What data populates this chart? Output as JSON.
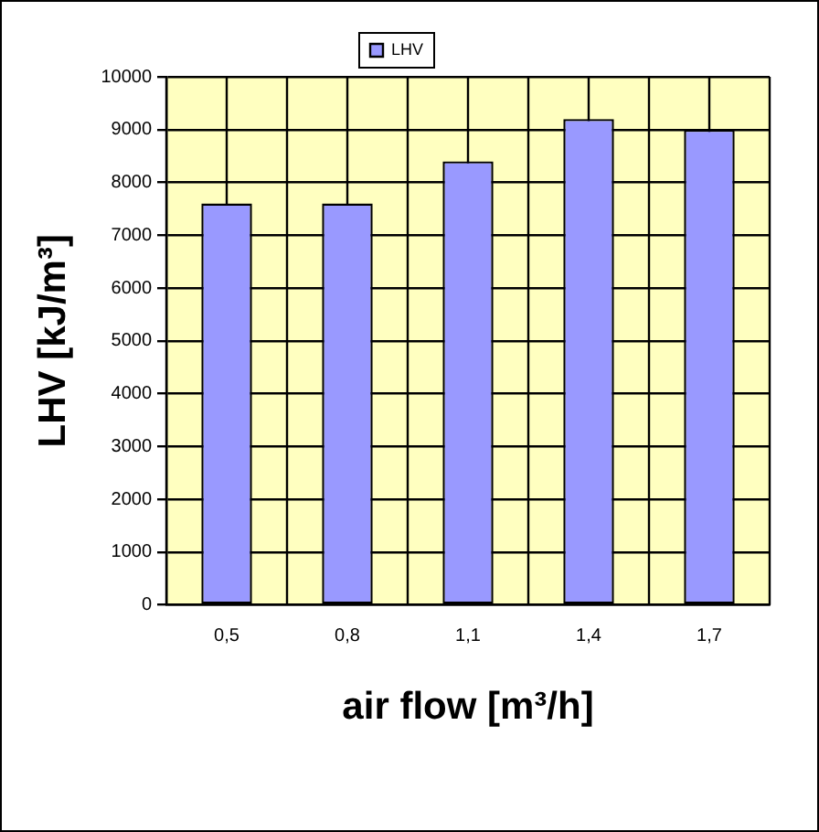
{
  "chart_data": {
    "type": "bar",
    "xlabel": "air flow [m³/h]",
    "ylabel": "LHV [kJ/m³]",
    "categories": [
      "0,5",
      "0,8",
      "1,1",
      "1,4",
      "1,7"
    ],
    "series": [
      {
        "name": "LHV",
        "color": "#9999ff",
        "values": [
          7600,
          7600,
          8400,
          9200,
          9000
        ]
      }
    ],
    "ylim": [
      0,
      10000
    ],
    "yticks": [
      0,
      1000,
      2000,
      3000,
      4000,
      5000,
      6000,
      7000,
      8000,
      9000,
      10000
    ],
    "grid": true,
    "legend": "top"
  }
}
